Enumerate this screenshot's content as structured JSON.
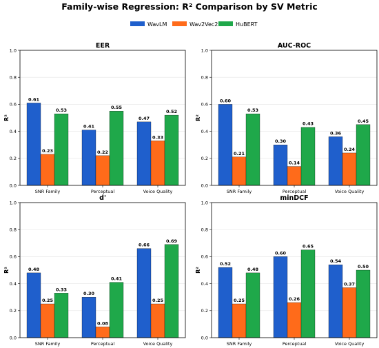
{
  "title": "Family-wise Regression: R² Comparison by SV Metric",
  "legend": [
    {
      "name": "WavLM",
      "color": "#1f5fcc"
    },
    {
      "name": "Wav2Vec2",
      "color": "#ff6b1a"
    },
    {
      "name": "HuBERT",
      "color": "#1fa84a"
    }
  ],
  "chart_data": [
    {
      "type": "bar",
      "title": "EER",
      "ylabel": "R²",
      "categories": [
        "SNR Family",
        "Perceptual",
        "Voice Quality"
      ],
      "ylim": [
        0,
        1.0
      ],
      "yticks": [
        "0.0",
        "0.2",
        "0.4",
        "0.6",
        "0.8",
        "1.0"
      ],
      "grid": true,
      "series": [
        {
          "name": "WavLM",
          "values": [
            0.61,
            0.41,
            0.47
          ],
          "labels": [
            "0.61",
            "0.41",
            "0.47"
          ]
        },
        {
          "name": "Wav2Vec2",
          "values": [
            0.23,
            0.22,
            0.33
          ],
          "labels": [
            "0.23",
            "0.22",
            "0.33"
          ]
        },
        {
          "name": "HuBERT",
          "values": [
            0.53,
            0.55,
            0.52
          ],
          "labels": [
            "0.53",
            "0.55",
            "0.52"
          ]
        }
      ]
    },
    {
      "type": "bar",
      "title": "AUC-ROC",
      "ylabel": "R²",
      "categories": [
        "SNR Family",
        "Perceptual",
        "Voice Quality"
      ],
      "ylim": [
        0,
        1.0
      ],
      "yticks": [
        "0.0",
        "0.2",
        "0.4",
        "0.6",
        "0.8",
        "1.0"
      ],
      "grid": true,
      "series": [
        {
          "name": "WavLM",
          "values": [
            0.6,
            0.3,
            0.36
          ],
          "labels": [
            "0.60",
            "0.30",
            "0.36"
          ]
        },
        {
          "name": "Wav2Vec2",
          "values": [
            0.21,
            0.14,
            0.24
          ],
          "labels": [
            "0.21",
            "0.14",
            "0.24"
          ]
        },
        {
          "name": "HuBERT",
          "values": [
            0.53,
            0.43,
            0.45
          ],
          "labels": [
            "0.53",
            "0.43",
            "0.45"
          ]
        }
      ]
    },
    {
      "type": "bar",
      "title": "d'",
      "ylabel": "R²",
      "categories": [
        "SNR Family",
        "Perceptual",
        "Voice Quality"
      ],
      "ylim": [
        0,
        1.0
      ],
      "yticks": [
        "0.0",
        "0.2",
        "0.4",
        "0.6",
        "0.8",
        "1.0"
      ],
      "grid": true,
      "series": [
        {
          "name": "WavLM",
          "values": [
            0.48,
            0.3,
            0.66
          ],
          "labels": [
            "0.48",
            "0.30",
            "0.66"
          ]
        },
        {
          "name": "Wav2Vec2",
          "values": [
            0.25,
            0.08,
            0.25
          ],
          "labels": [
            "0.25",
            "0.08",
            "0.25"
          ]
        },
        {
          "name": "HuBERT",
          "values": [
            0.33,
            0.41,
            0.69
          ],
          "labels": [
            "0.33",
            "0.41",
            "0.69"
          ]
        }
      ]
    },
    {
      "type": "bar",
      "title": "minDCF",
      "ylabel": "R²",
      "categories": [
        "SNR Family",
        "Perceptual",
        "Voice Quality"
      ],
      "ylim": [
        0,
        1.0
      ],
      "yticks": [
        "0.0",
        "0.2",
        "0.4",
        "0.6",
        "0.8",
        "1.0"
      ],
      "grid": true,
      "series": [
        {
          "name": "WavLM",
          "values": [
            0.52,
            0.6,
            0.54
          ],
          "labels": [
            "0.52",
            "0.60",
            "0.54"
          ]
        },
        {
          "name": "Wav2Vec2",
          "values": [
            0.25,
            0.26,
            0.37
          ],
          "labels": [
            "0.25",
            "0.26",
            "0.37"
          ]
        },
        {
          "name": "HuBERT",
          "values": [
            0.48,
            0.65,
            0.5
          ],
          "labels": [
            "0.48",
            "0.65",
            "0.50"
          ]
        }
      ]
    }
  ]
}
